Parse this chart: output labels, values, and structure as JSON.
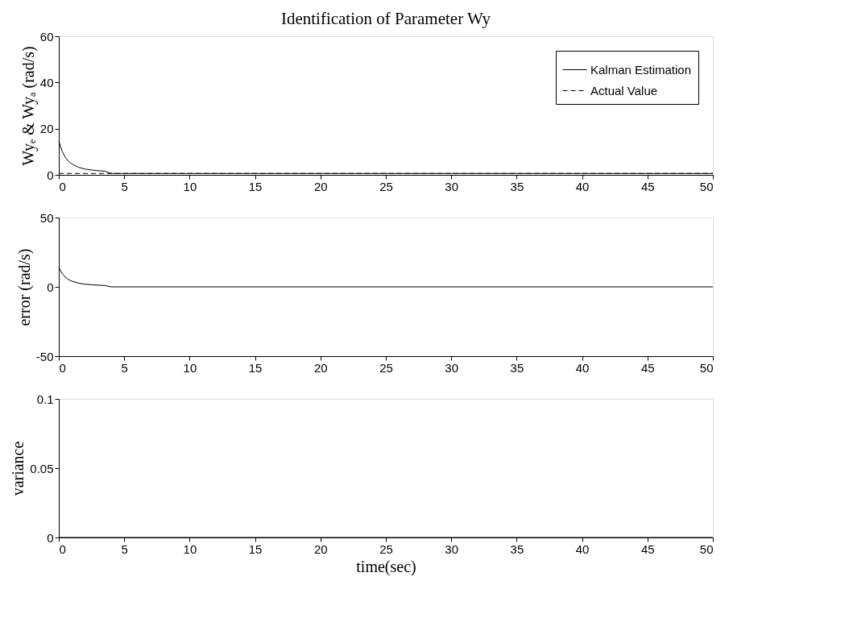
{
  "chart_data": [
    {
      "type": "line",
      "title": "Identification of Parameter Wy",
      "ylabel": "Wyₑ & Wyₐ (rad/s)",
      "xlim": [
        0,
        50
      ],
      "xticks": [
        0,
        5,
        10,
        15,
        20,
        25,
        30,
        35,
        40,
        45,
        50
      ],
      "ylim": [
        0,
        60
      ],
      "yticks": [
        0,
        20,
        40,
        60
      ],
      "grid": false,
      "legend": "top right",
      "series": [
        {
          "name": "Kalman Estimation",
          "color": "#000000",
          "line_style": "solid",
          "x": [
            0,
            0.25,
            0.5,
            0.75,
            1,
            1.5,
            2,
            2.5,
            3,
            3.5,
            4,
            50
          ],
          "values": [
            14.6,
            10.3,
            7.6,
            5.8,
            4.7,
            3.3,
            2.5,
            2.1,
            1.8,
            1.6,
            0.6,
            0.6
          ]
        },
        {
          "name": "Actual Value",
          "color": "#000000",
          "line_style": "dashed",
          "x": [
            0,
            50
          ],
          "values": [
            0.6,
            0.6
          ]
        }
      ]
    },
    {
      "type": "line",
      "ylabel": "error (rad/s)",
      "xlim": [
        0,
        50
      ],
      "xticks": [
        0,
        5,
        10,
        15,
        20,
        25,
        30,
        35,
        40,
        45,
        50
      ],
      "ylim": [
        -50,
        50
      ],
      "yticks": [
        -50,
        0,
        50
      ],
      "grid": false,
      "series": [
        {
          "color": "#000000",
          "line_style": "solid",
          "x": [
            0,
            0.25,
            0.5,
            0.75,
            1,
            1.5,
            2,
            2.5,
            3,
            3.5,
            4,
            50
          ],
          "values": [
            14,
            9.7,
            7,
            5.2,
            4.1,
            2.7,
            1.9,
            1.5,
            1.2,
            1.0,
            0,
            0
          ]
        }
      ]
    },
    {
      "type": "line",
      "ylabel": "variance",
      "xlabel": "time(sec)",
      "xlim": [
        0,
        50
      ],
      "xticks": [
        0,
        5,
        10,
        15,
        20,
        25,
        30,
        35,
        40,
        45,
        50
      ],
      "ylim": [
        0,
        0.1
      ],
      "yticks": [
        0,
        0.05,
        0.1
      ],
      "grid": false,
      "series": [
        {
          "color": "#000000",
          "line_style": "solid",
          "x": [
            0,
            50
          ],
          "values": [
            0,
            0
          ]
        }
      ]
    }
  ]
}
